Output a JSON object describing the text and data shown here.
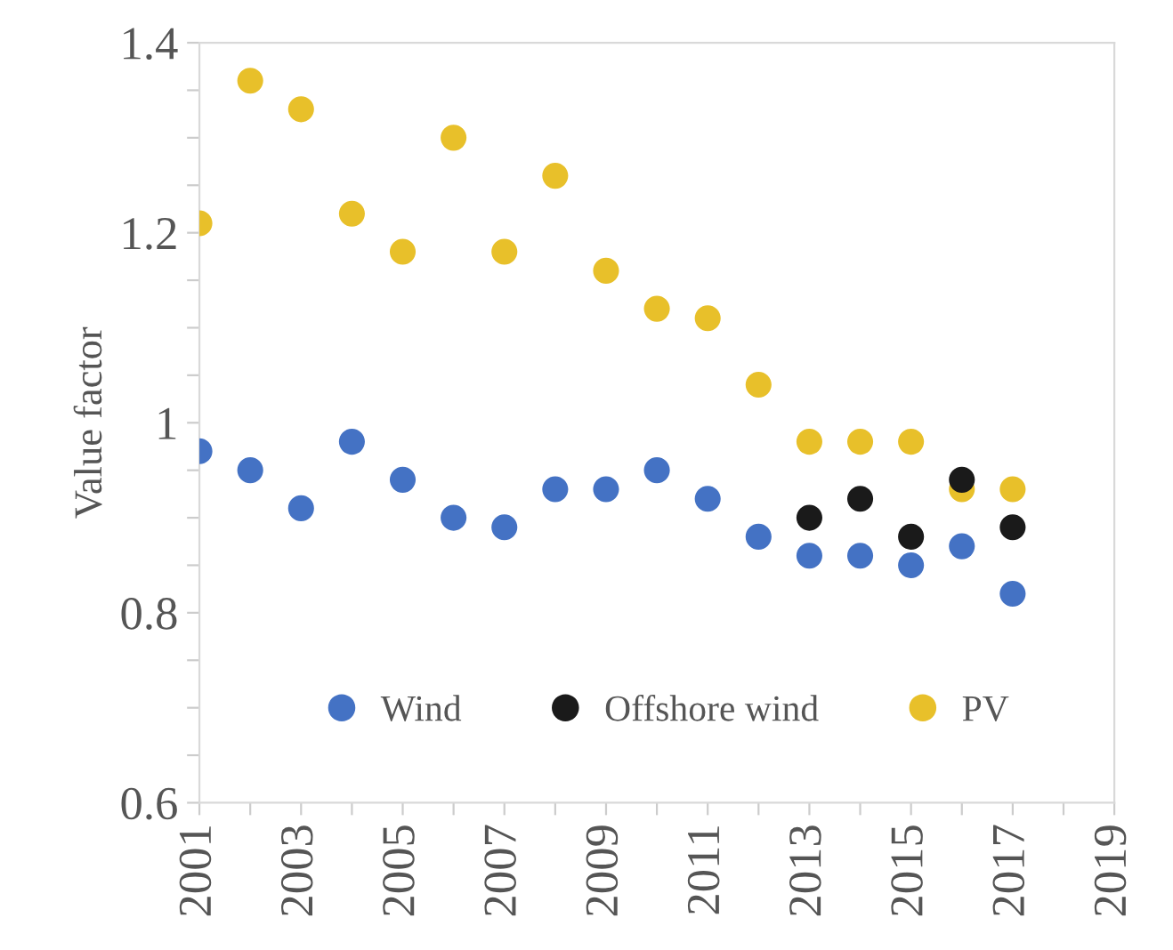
{
  "chart_data": {
    "type": "scatter",
    "ylabel": "Value factor",
    "series": [
      {
        "name": "Wind",
        "color": "#4472c4",
        "x": [
          2001,
          2002,
          2003,
          2004,
          2005,
          2006,
          2007,
          2008,
          2009,
          2010,
          2011,
          2012,
          2013,
          2014,
          2015,
          2016,
          2017
        ],
        "values": [
          0.97,
          0.95,
          0.91,
          0.98,
          0.94,
          0.9,
          0.89,
          0.93,
          0.93,
          0.95,
          0.92,
          0.88,
          0.86,
          0.86,
          0.85,
          0.87,
          0.82
        ]
      },
      {
        "name": "Offshore wind",
        "color": "#1a1a1a",
        "x": [
          2013,
          2014,
          2015,
          2016,
          2017
        ],
        "values": [
          0.9,
          0.92,
          0.88,
          0.94,
          0.89
        ]
      },
      {
        "name": "PV",
        "color": "#e8c02a",
        "x": [
          2001,
          2002,
          2003,
          2004,
          2005,
          2006,
          2007,
          2008,
          2009,
          2010,
          2011,
          2012,
          2013,
          2014,
          2015,
          2016,
          2017
        ],
        "values": [
          1.21,
          1.36,
          1.33,
          1.22,
          1.18,
          1.3,
          1.18,
          1.26,
          1.16,
          1.12,
          1.11,
          1.04,
          0.98,
          0.98,
          0.98,
          0.93,
          0.93
        ]
      }
    ],
    "xlim": [
      2001,
      2019
    ],
    "xticks": [
      2001,
      {
        "value": 2002,
        "label": null
      },
      2003,
      {
        "value": 2004,
        "label": null
      },
      2005,
      {
        "value": 2006,
        "label": null
      },
      2007,
      {
        "value": 2008,
        "label": null
      },
      2009,
      {
        "value": 2010,
        "label": null
      },
      2011,
      {
        "value": 2012,
        "label": null
      },
      2013,
      {
        "value": 2014,
        "label": null
      },
      2015,
      {
        "value": 2016,
        "label": null
      },
      2017,
      {
        "value": 2018,
        "label": null
      },
      2019
    ],
    "ylim": [
      0.6,
      1.4
    ],
    "yticks": [
      0.6,
      {
        "value": 0.65,
        "label": null
      },
      {
        "value": 0.7,
        "label": null
      },
      {
        "value": 0.75,
        "label": null
      },
      0.8,
      {
        "value": 0.85,
        "label": null
      },
      {
        "value": 0.9,
        "label": null
      },
      {
        "value": 0.95,
        "label": null
      },
      {
        "value": 1,
        "label": "1"
      },
      {
        "value": 1.05,
        "label": null
      },
      {
        "value": 1.1,
        "label": null
      },
      {
        "value": 1.15,
        "label": null
      },
      1.2,
      {
        "value": 1.25,
        "label": null
      },
      {
        "value": 1.3,
        "label": null
      },
      {
        "value": 1.35,
        "label": null
      },
      1.4
    ],
    "grid": false,
    "legend": "bottom",
    "marker": "circle"
  }
}
